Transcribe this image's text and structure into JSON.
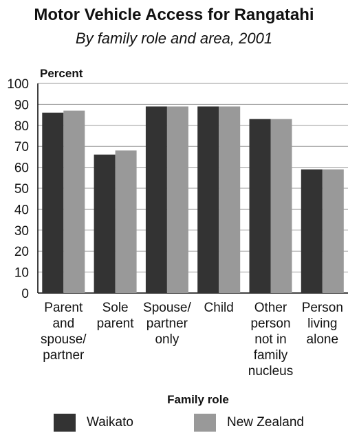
{
  "title": "Motor Vehicle Access for Rangatahi",
  "subtitle": "By family role and area, 2001",
  "colors": {
    "waikato": "#333333",
    "new_zealand": "#999999",
    "grid": "#9a9a9a",
    "axis": "#000000"
  },
  "chart_data": {
    "type": "bar",
    "title": "Motor Vehicle Access for Rangatahi",
    "subtitle": "By family role and area, 2001",
    "ylabel": "Percent",
    "xlabel": "Family role",
    "ylim": [
      0,
      100
    ],
    "yticks": [
      "0",
      "10",
      "20",
      "30",
      "40",
      "50",
      "60",
      "70",
      "80",
      "90",
      "100"
    ],
    "grid": true,
    "legend_position": "bottom",
    "categories": [
      [
        "Parent",
        "and",
        "spouse/",
        "partner"
      ],
      [
        "Sole",
        "parent"
      ],
      [
        "Spouse/",
        "partner",
        "only"
      ],
      [
        "Child"
      ],
      [
        "Other",
        "person",
        "not in",
        "family",
        "nucleus"
      ],
      [
        "Person",
        "living",
        "alone"
      ]
    ],
    "series": [
      {
        "name": "Waikato",
        "color": "#333333",
        "values": [
          86,
          66,
          89,
          89,
          83,
          59
        ]
      },
      {
        "name": "New Zealand",
        "color": "#999999",
        "values": [
          87,
          68,
          89,
          89,
          83,
          59
        ]
      }
    ]
  }
}
